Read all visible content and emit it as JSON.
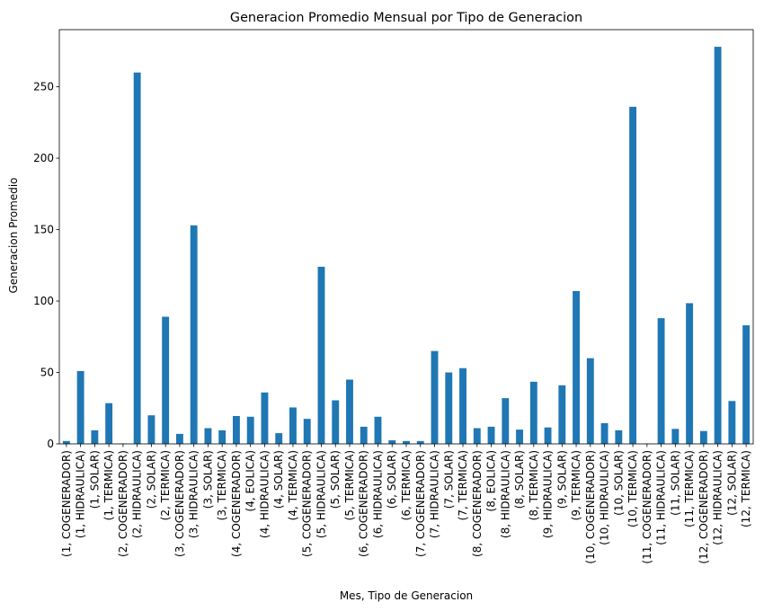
{
  "chart_data": {
    "type": "bar",
    "title": "Generacion Promedio Mensual por Tipo de Generacion",
    "xlabel": "Mes, Tipo de Generacion",
    "ylabel": "Generacion Promedio",
    "ylim": [
      0,
      290
    ],
    "yticks": [
      0,
      50,
      100,
      150,
      200,
      250
    ],
    "bar_color": "#1f77b4",
    "grid": false,
    "legend": "none",
    "categories": [
      "(1, COGENERADOR)",
      "(1, HIDRAULICA)",
      "(1, SOLAR)",
      "(1, TERMICA)",
      "(2, COGENERADOR)",
      "(2, HIDRAULICA)",
      "(2, SOLAR)",
      "(2, TERMICA)",
      "(3, COGENERADOR)",
      "(3, HIDRAULICA)",
      "(3, SOLAR)",
      "(3, TERMICA)",
      "(4, COGENERADOR)",
      "(4, EOLICA)",
      "(4, HIDRAULICA)",
      "(4, SOLAR)",
      "(4, TERMICA)",
      "(5, COGENERADOR)",
      "(5, HIDRAULICA)",
      "(5, SOLAR)",
      "(5, TERMICA)",
      "(6, COGENERADOR)",
      "(6, HIDRAULICA)",
      "(6, SOLAR)",
      "(6, TERMICA)",
      "(7, COGENERADOR)",
      "(7, HIDRAULICA)",
      "(7, SOLAR)",
      "(7, TERMICA)",
      "(8, COGENERADOR)",
      "(8, EOLICA)",
      "(8, HIDRAULICA)",
      "(8, SOLAR)",
      "(8, TERMICA)",
      "(9, HIDRAULICA)",
      "(9, SOLAR)",
      "(9, TERMICA)",
      "(10, COGENERADOR)",
      "(10, HIDRAULICA)",
      "(10, SOLAR)",
      "(10, TERMICA)",
      "(11, COGENERADOR)",
      "(11, HIDRAULICA)",
      "(11, SOLAR)",
      "(11, TERMICA)",
      "(12, COGENERADOR)",
      "(12, HIDRAULICA)",
      "(12, SOLAR)",
      "(12, TERMICA)"
    ],
    "values": [
      2,
      51,
      9.5,
      28.5,
      0.3,
      260,
      20,
      89,
      7,
      153,
      11,
      9.5,
      19.5,
      19,
      36,
      7.5,
      25.5,
      17.5,
      124,
      30.5,
      45,
      12,
      19,
      2.5,
      2,
      2,
      65,
      50,
      53,
      11,
      12,
      32,
      10,
      43.5,
      11.5,
      41,
      107,
      60,
      14.5,
      9.5,
      236,
      0.2,
      88,
      10.5,
      98.5,
      9,
      278,
      30,
      83
    ]
  }
}
